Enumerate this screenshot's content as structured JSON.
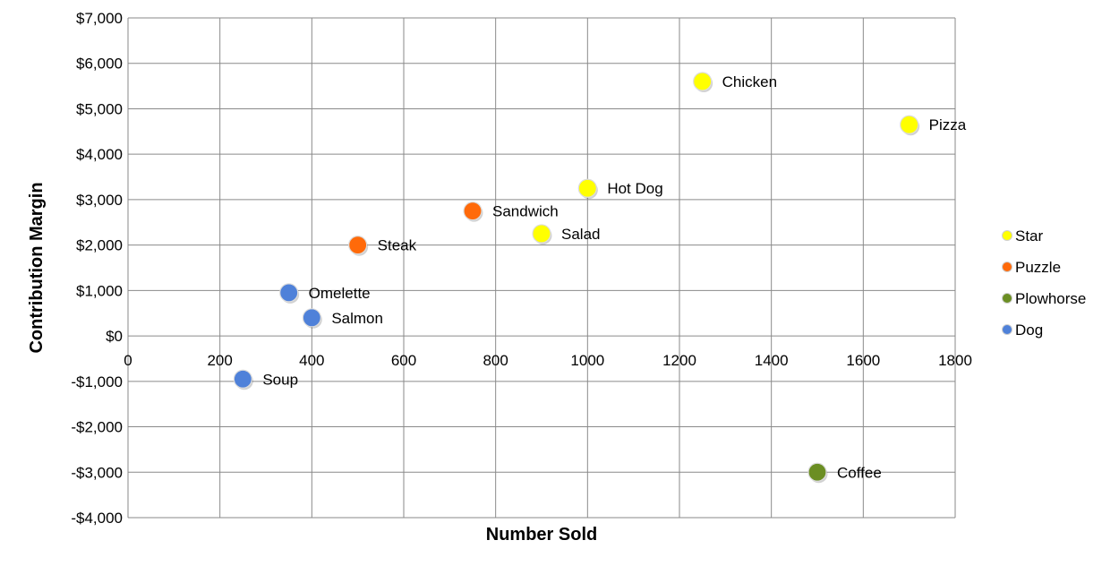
{
  "chart_data": {
    "type": "scatter",
    "title": "",
    "xlabel": "Number Sold",
    "ylabel": "Contribution Margin",
    "xlim": [
      0,
      1800
    ],
    "ylim": [
      -4000,
      7000
    ],
    "x_ticks": [
      0,
      200,
      400,
      600,
      800,
      1000,
      1200,
      1400,
      1600,
      1800
    ],
    "x_tick_labels": [
      "0",
      "200",
      "400",
      "600",
      "800",
      "1000",
      "1200",
      "1400",
      "1600",
      "1800"
    ],
    "y_ticks": [
      7000,
      6000,
      5000,
      4000,
      3000,
      2000,
      1000,
      0,
      -1000,
      -2000,
      -3000,
      -4000
    ],
    "y_tick_labels": [
      "$7,000",
      "$6,000",
      "$5,000",
      "$4,000",
      "$3,000",
      "$2,000",
      "$1,000",
      "$0",
      "-$1,000",
      "-$2,000",
      "-$3,000",
      "-$4,000"
    ],
    "grid": true,
    "legend_position": "right",
    "series": [
      {
        "name": "Star",
        "color": "#ffff00",
        "points": [
          {
            "label": "Chicken",
            "x": 1250,
            "y": 5600
          },
          {
            "label": "Pizza",
            "x": 1700,
            "y": 4650
          },
          {
            "label": "Hot Dog",
            "x": 1000,
            "y": 3250
          },
          {
            "label": "Salad",
            "x": 900,
            "y": 2250
          }
        ]
      },
      {
        "name": "Puzzle",
        "color": "#ff6a0a",
        "points": [
          {
            "label": "Sandwich",
            "x": 750,
            "y": 2750
          },
          {
            "label": "Steak",
            "x": 500,
            "y": 2000
          }
        ]
      },
      {
        "name": "Plowhorse",
        "color": "#6b8e23",
        "points": [
          {
            "label": "Coffee",
            "x": 1500,
            "y": -3000
          }
        ]
      },
      {
        "name": "Dog",
        "color": "#4f81d9",
        "points": [
          {
            "label": "Omelette",
            "x": 350,
            "y": 950
          },
          {
            "label": "Salmon",
            "x": 400,
            "y": 400
          },
          {
            "label": "Soup",
            "x": 250,
            "y": -950
          }
        ]
      }
    ]
  }
}
